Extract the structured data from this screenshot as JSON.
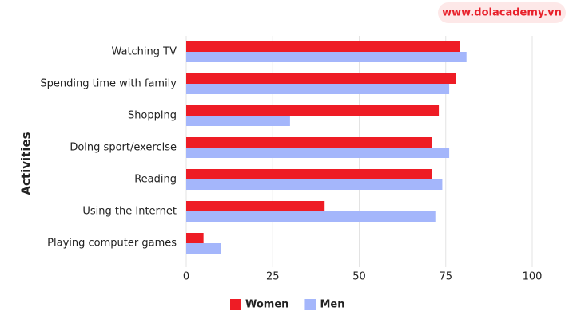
{
  "chart_data": {
    "type": "barh",
    "watermark": "www.dolacademy.vn",
    "ylabel": "Activities",
    "categories": [
      "Watching TV",
      "Spending time with family",
      "Shopping",
      "Doing sport/exercise",
      "Reading",
      "Using the Internet",
      "Playing computer games"
    ],
    "series": [
      {
        "name": "Women",
        "color": "#ee1c25",
        "values": [
          79,
          78,
          73,
          71,
          71,
          40,
          5
        ]
      },
      {
        "name": "Men",
        "color": "#a4b6fb",
        "values": [
          81,
          76,
          30,
          76,
          74,
          72,
          10
        ]
      }
    ],
    "xlim": [
      0,
      100
    ],
    "xticks": [
      0,
      25,
      50,
      75,
      100
    ],
    "grid": true
  }
}
